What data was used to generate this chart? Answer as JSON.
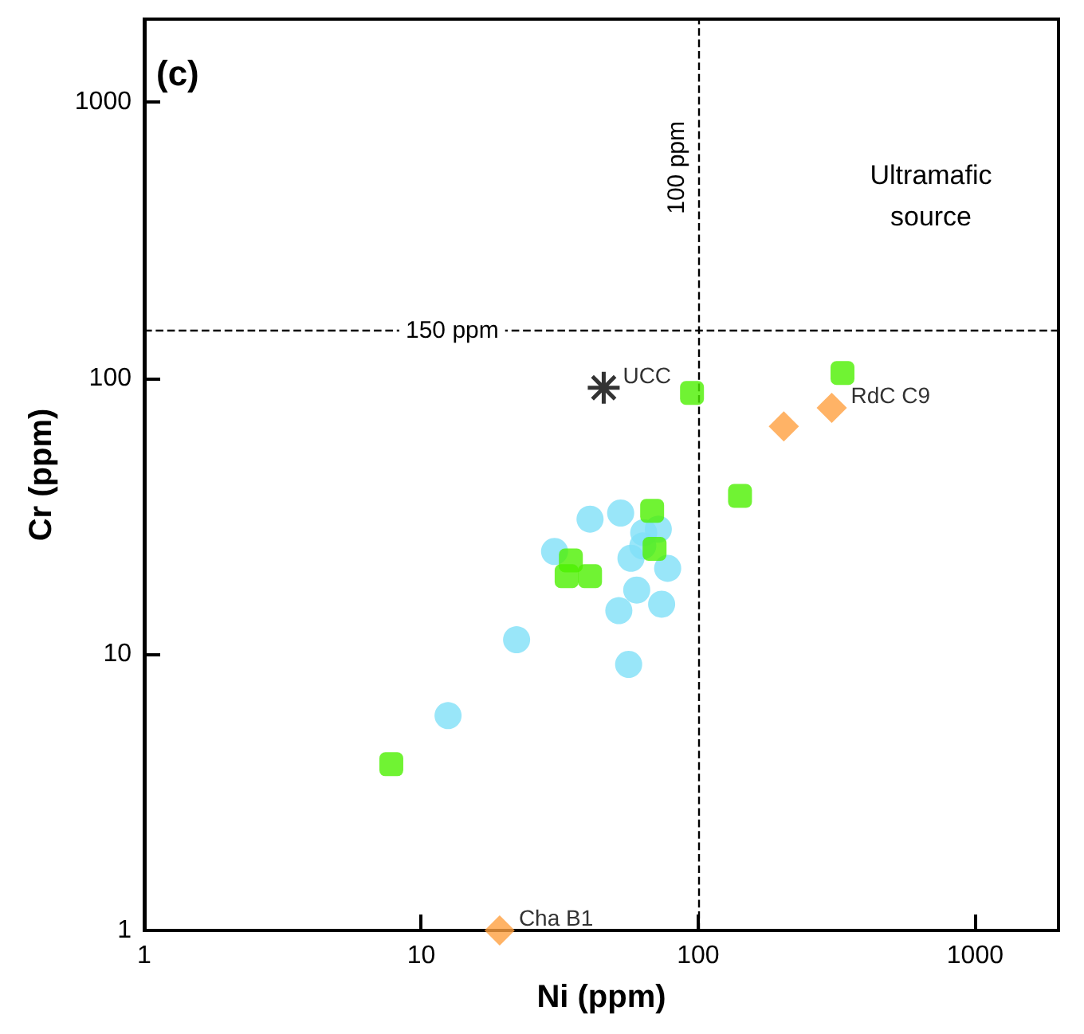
{
  "chart_data": {
    "type": "scatter",
    "title": "(c)",
    "xlabel": "Ni (ppm)",
    "ylabel": "Cr (ppm)",
    "log": "xy",
    "xlim": [
      1,
      2000
    ],
    "ylim": [
      1,
      2000
    ],
    "xticks": [
      1,
      10,
      100,
      1000
    ],
    "yticks": [
      1,
      10,
      100,
      1000
    ],
    "grid": false,
    "series": [
      {
        "color": "#7fe0f7",
        "marker": "circle",
        "x": [
          40.7,
          30.3,
          63.6,
          57.2,
          77.6,
          60,
          51.7,
          73.8,
          22.1,
          56.1,
          12.5
        ],
        "values": [
          30.9,
          23.6,
          27.6,
          22.3,
          20.5,
          17.1,
          14.4,
          15.2,
          11.3,
          9.2,
          6
        ]
      },
      {
        "color": "#7fe0f7",
        "marker": "circle",
        "x": [
          52.5,
          71.8,
          63.1
        ],
        "values": [
          32.5,
          28.4,
          24.7
        ]
      },
      {
        "color": "#4cf000",
        "marker": "square",
        "x": [
          95,
          68.2,
          69.6
        ],
        "values": [
          88.5,
          33.1,
          24.1
        ]
      },
      {
        "color": "#4cf000",
        "marker": "square",
        "x": [
          34.7,
          33.5,
          40.7,
          332,
          141.6,
          7.8
        ],
        "values": [
          21.9,
          19.2,
          19.2,
          104.5,
          37.5,
          4
        ]
      },
      {
        "color": "#ffa040",
        "marker": "diamond",
        "x": [
          203.8
        ],
        "values": [
          67
        ]
      },
      {
        "color": "#ffa040",
        "marker": "diamond",
        "x": [
          303.6,
          19.2
        ],
        "values": [
          78.2,
          1
        ]
      },
      {
        "color": "#000000",
        "marker": "cross",
        "x": [
          45.6
        ],
        "values": [
          92.4
        ]
      }
    ],
    "ref_lines": [
      {
        "axis": "x",
        "value": 100,
        "label": "100 ppm",
        "line_style": "dashed"
      },
      {
        "axis": "y",
        "value": 150,
        "label": "150 ppm",
        "line_style": "dashed"
      }
    ],
    "annotations": [
      "Ultramafic source",
      {
        "text": "UCC",
        "x": 45.6,
        "y": 92.4
      },
      {
        "text": "RdC C9",
        "x": 303.6,
        "y": 78.2
      },
      {
        "text": "Cha B1",
        "x": 19.2,
        "y": 1
      }
    ]
  }
}
